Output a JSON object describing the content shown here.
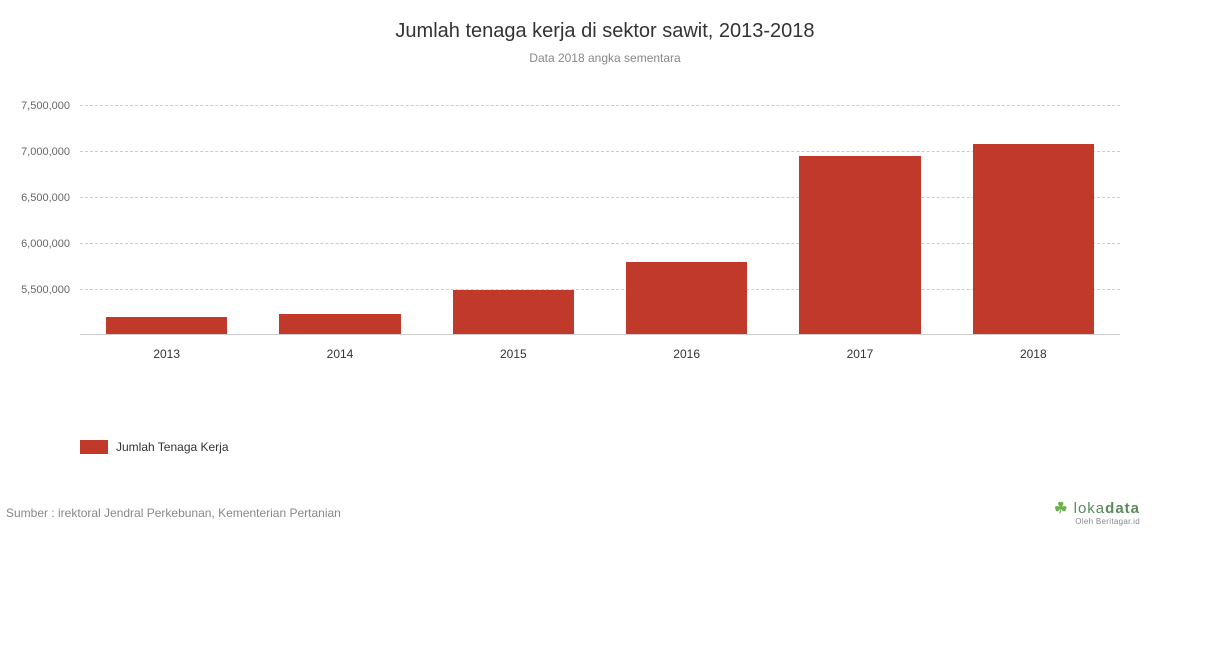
{
  "chart": {
    "type": "bar",
    "title": "Jumlah tenaga kerja di sektor sawit, 2013-2018",
    "title_fontsize": 20,
    "title_color": "#333333",
    "subtitle": "Data 2018 angka sementara",
    "subtitle_fontsize": 12,
    "subtitle_color": "#888888",
    "categories": [
      "2013",
      "2014",
      "2015",
      "2016",
      "2017",
      "2018"
    ],
    "values": [
      5200000,
      5230000,
      5490000,
      5790000,
      6950000,
      7080000
    ],
    "bar_color": "#c0392b",
    "bar_width": 0.7,
    "background_color": "#ffffff",
    "grid_color": "#cccccc",
    "grid_style": "dashed",
    "axis_line_color": "#cccccc",
    "y_min": 5000000,
    "y_max": 7500000,
    "y_ticks": [
      5500000,
      6000000,
      6500000,
      7000000,
      7500000
    ],
    "y_tick_labels": [
      "5,500,000",
      "6,000,000",
      "6,500,000",
      "7,000,000",
      "7,500,000"
    ],
    "y_label_fontsize": 11,
    "y_label_color": "#666666",
    "x_label_fontsize": 12,
    "x_label_color": "#333333"
  },
  "legend": {
    "swatch_color": "#c0392b",
    "label": "Jumlah Tenaga Kerja",
    "label_fontsize": 12,
    "label_color": "#333333"
  },
  "source": {
    "text": "Sumber : irektoral Jendral Perkebunan, Kementerian Pertanian",
    "fontsize": 12,
    "color": "#888888"
  },
  "brand": {
    "name_light": "loka",
    "name_bold": "data",
    "name_color": "#5a8a5a",
    "tagline": "Oleh Beritagar.id",
    "tagline_color": "#888888"
  }
}
